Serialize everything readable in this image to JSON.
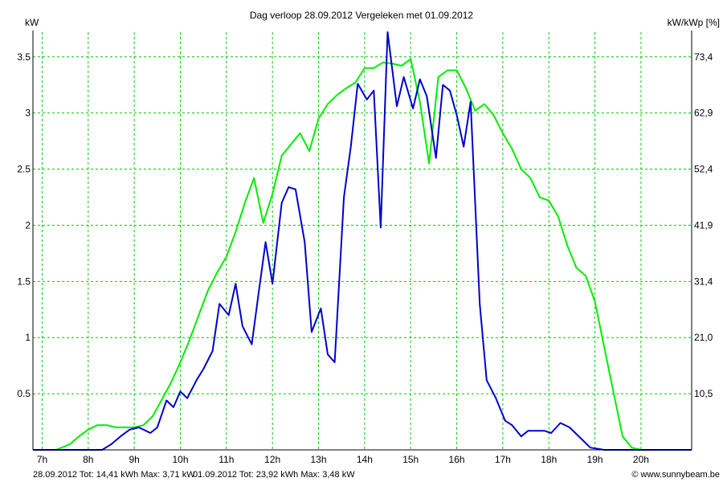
{
  "chart_data": {
    "type": "line",
    "title": "Dag  verloop 28.09.2012   Vergeleken met 01.09.2012",
    "ylabel_left": "kW",
    "ylabel_right": "kW/kWp [%]",
    "xlim": [
      6.8,
      21.1
    ],
    "ylim": [
      0,
      3.72
    ],
    "x_ticks": [
      7,
      8,
      9,
      10,
      11,
      12,
      13,
      14,
      15,
      16,
      17,
      18,
      19,
      20
    ],
    "x_tick_labels": [
      "7h",
      "8h",
      "9h",
      "10h",
      "11h",
      "12h",
      "13h",
      "14h",
      "15h",
      "16h",
      "17h",
      "18h",
      "19h",
      "20h"
    ],
    "y_ticks_left": [
      0.5,
      1,
      1.5,
      2,
      2.5,
      3,
      3.5
    ],
    "y_tick_labels_left": [
      "0.5",
      "1",
      "1.5",
      "2",
      "2.5",
      "3",
      "3.5"
    ],
    "y_tick_labels_right": [
      "10,5",
      "21,0",
      "31,4",
      "41,9",
      "52,4",
      "62,9",
      "73,4"
    ],
    "grid": true,
    "colors": {
      "grid": "#00cc00",
      "series_28": "#0000cc",
      "series_01": "#00ee00",
      "axis": "#000000"
    },
    "series": [
      {
        "key": "28.09.2012",
        "color": "#0000cc",
        "x": [
          6.8,
          8.3,
          8.5,
          8.7,
          8.9,
          9.1,
          9.35,
          9.5,
          9.7,
          9.85,
          10.0,
          10.15,
          10.35,
          10.5,
          10.7,
          10.85,
          11.05,
          11.2,
          11.35,
          11.55,
          11.7,
          11.85,
          12.0,
          12.2,
          12.35,
          12.5,
          12.7,
          12.85,
          13.05,
          13.2,
          13.35,
          13.55,
          13.7,
          13.85,
          14.05,
          14.2,
          14.35,
          14.5,
          14.7,
          14.85,
          15.05,
          15.2,
          15.35,
          15.55,
          15.7,
          15.85,
          16.0,
          16.15,
          16.3,
          16.5,
          16.65,
          16.85,
          17.05,
          17.2,
          17.4,
          17.55,
          17.75,
          17.9,
          18.05,
          18.25,
          18.45,
          18.7,
          18.9,
          19.2,
          20.0,
          21.1
        ],
        "y": [
          0.0,
          0.0,
          0.05,
          0.12,
          0.18,
          0.2,
          0.15,
          0.2,
          0.44,
          0.38,
          0.52,
          0.46,
          0.62,
          0.72,
          0.88,
          1.3,
          1.2,
          1.48,
          1.1,
          0.94,
          1.4,
          1.85,
          1.48,
          2.2,
          2.34,
          2.32,
          1.85,
          1.05,
          1.26,
          0.85,
          0.78,
          2.25,
          2.7,
          3.26,
          3.12,
          3.2,
          1.98,
          3.72,
          3.06,
          3.32,
          3.04,
          3.3,
          3.15,
          2.6,
          3.25,
          3.2,
          2.98,
          2.7,
          3.1,
          1.3,
          0.62,
          0.46,
          0.26,
          0.22,
          0.12,
          0.17,
          0.17,
          0.17,
          0.15,
          0.24,
          0.2,
          0.1,
          0.02,
          0.0,
          0.0,
          0.0
        ]
      },
      {
        "key": "01.09.2012",
        "color": "#00ee00",
        "x": [
          6.8,
          7.3,
          7.6,
          7.8,
          8.0,
          8.2,
          8.4,
          8.6,
          8.8,
          9.0,
          9.2,
          9.4,
          9.6,
          9.8,
          10.0,
          10.2,
          10.4,
          10.6,
          10.8,
          11.0,
          11.2,
          11.4,
          11.6,
          11.8,
          12.0,
          12.2,
          12.4,
          12.6,
          12.8,
          13.0,
          13.2,
          13.4,
          13.6,
          13.8,
          14.0,
          14.2,
          14.4,
          14.6,
          14.8,
          15.0,
          15.2,
          15.4,
          15.6,
          15.8,
          16.0,
          16.2,
          16.4,
          16.6,
          16.8,
          17.0,
          17.2,
          17.4,
          17.6,
          17.8,
          18.0,
          18.2,
          18.4,
          18.6,
          18.8,
          19.0,
          19.2,
          19.4,
          19.6,
          19.8,
          20.0,
          20.2,
          20.5,
          21.1
        ],
        "y": [
          0.0,
          0.0,
          0.05,
          0.12,
          0.18,
          0.22,
          0.22,
          0.2,
          0.2,
          0.2,
          0.22,
          0.3,
          0.45,
          0.6,
          0.78,
          0.98,
          1.2,
          1.42,
          1.58,
          1.72,
          1.94,
          2.2,
          2.42,
          2.02,
          2.28,
          2.62,
          2.72,
          2.82,
          2.66,
          2.95,
          3.08,
          3.16,
          3.22,
          3.27,
          3.4,
          3.4,
          3.45,
          3.44,
          3.42,
          3.48,
          3.1,
          2.55,
          3.32,
          3.38,
          3.38,
          3.22,
          3.02,
          3.08,
          2.98,
          2.82,
          2.68,
          2.5,
          2.42,
          2.25,
          2.22,
          2.08,
          1.82,
          1.62,
          1.55,
          1.32,
          0.92,
          0.52,
          0.12,
          0.02,
          0.0,
          0.0,
          0.0,
          0.0
        ]
      }
    ],
    "footer": {
      "series_28_summary": "28.09.2012 Tot: 14,41 kWh Max: 3,71 kW",
      "series_01_summary": "01.09.2012 Tot: 23,92 kWh Max: 3,48 kW",
      "watermark": "© www.sunnybeam.be"
    }
  }
}
